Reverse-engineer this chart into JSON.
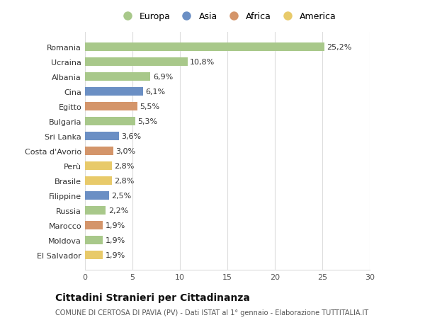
{
  "countries": [
    "Romania",
    "Ucraina",
    "Albania",
    "Cina",
    "Egitto",
    "Bulgaria",
    "Sri Lanka",
    "Costa d'Avorio",
    "Perù",
    "Brasile",
    "Filippine",
    "Russia",
    "Marocco",
    "Moldova",
    "El Salvador"
  ],
  "values": [
    25.2,
    10.8,
    6.9,
    6.1,
    5.5,
    5.3,
    3.6,
    3.0,
    2.8,
    2.8,
    2.5,
    2.2,
    1.9,
    1.9,
    1.9
  ],
  "labels": [
    "25,2%",
    "10,8%",
    "6,9%",
    "6,1%",
    "5,5%",
    "5,3%",
    "3,6%",
    "3,0%",
    "2,8%",
    "2,8%",
    "2,5%",
    "2,2%",
    "1,9%",
    "1,9%",
    "1,9%"
  ],
  "continents": [
    "Europa",
    "Europa",
    "Europa",
    "Asia",
    "Africa",
    "Europa",
    "Asia",
    "Africa",
    "America",
    "America",
    "Asia",
    "Europa",
    "Africa",
    "Europa",
    "America"
  ],
  "continent_colors": {
    "Europa": "#a8c88a",
    "Asia": "#6b8fc4",
    "Africa": "#d4956a",
    "America": "#e8ca6a"
  },
  "legend_order": [
    "Europa",
    "Asia",
    "Africa",
    "America"
  ],
  "xlim": [
    0,
    30
  ],
  "xticks": [
    0,
    5,
    10,
    15,
    20,
    25,
    30
  ],
  "title_main": "Cittadini Stranieri per Cittadinanza",
  "title_sub": "COMUNE DI CERTOSA DI PAVIA (PV) - Dati ISTAT al 1° gennaio - Elaborazione TUTTITALIA.IT",
  "background_color": "#ffffff",
  "grid_color": "#dddddd",
  "bar_height": 0.55,
  "label_fontsize": 8,
  "tick_fontsize": 8
}
